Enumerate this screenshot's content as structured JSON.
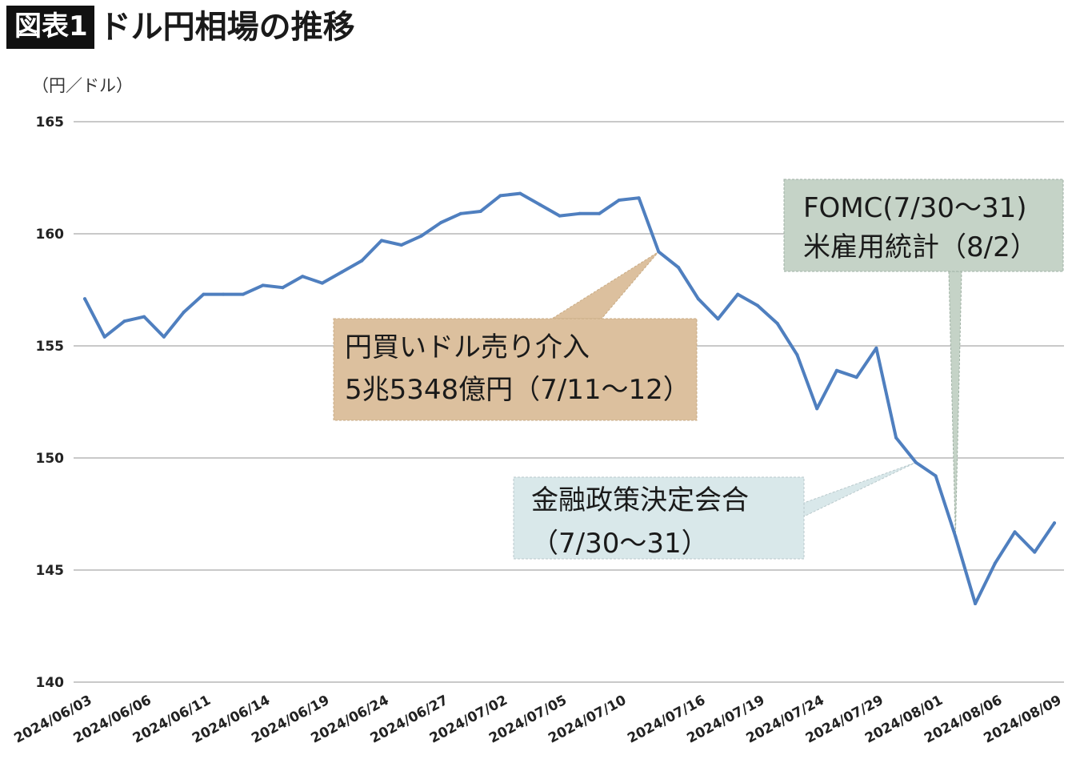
{
  "header": {
    "figure_label": "図表1",
    "title": "ドル円相場の推移"
  },
  "chart_data": {
    "type": "line",
    "unit_label": "（円／ドル）",
    "ylim": [
      140,
      165
    ],
    "yticks": [
      165,
      160,
      155,
      150,
      145,
      140
    ],
    "grid": true,
    "line_color": "#4f7fbf",
    "x_tick_labels": [
      "2024/06/03",
      "2024/06/06",
      "2024/06/11",
      "2024/06/14",
      "2024/06/19",
      "2024/06/24",
      "2024/06/27",
      "2024/07/02",
      "2024/07/05",
      "2024/07/10",
      "2024/07/16",
      "2024/07/19",
      "2024/07/24",
      "2024/07/29",
      "2024/08/01",
      "2024/08/06",
      "2024/08/09"
    ],
    "series": [
      {
        "x": [
          "2024/06/03",
          "2024/06/04",
          "2024/06/05",
          "2024/06/06",
          "2024/06/07",
          "2024/06/10",
          "2024/06/11",
          "2024/06/12",
          "2024/06/13",
          "2024/06/14",
          "2024/06/17",
          "2024/06/18",
          "2024/06/19",
          "2024/06/20",
          "2024/06/21",
          "2024/06/24",
          "2024/06/25",
          "2024/06/26",
          "2024/06/27",
          "2024/06/28",
          "2024/07/01",
          "2024/07/02",
          "2024/07/03",
          "2024/07/04",
          "2024/07/05",
          "2024/07/08",
          "2024/07/09",
          "2024/07/10",
          "2024/07/11",
          "2024/07/12",
          "2024/07/15",
          "2024/07/16",
          "2024/07/17",
          "2024/07/18",
          "2024/07/19",
          "2024/07/22",
          "2024/07/23",
          "2024/07/24",
          "2024/07/25",
          "2024/07/26",
          "2024/07/29",
          "2024/07/30",
          "2024/07/31",
          "2024/08/01",
          "2024/08/02",
          "2024/08/05",
          "2024/08/06",
          "2024/08/07",
          "2024/08/08",
          "2024/08/09"
        ],
        "values": [
          157.1,
          155.4,
          156.1,
          156.3,
          155.4,
          156.5,
          157.3,
          157.3,
          157.3,
          157.7,
          157.6,
          158.1,
          157.8,
          158.3,
          158.8,
          159.7,
          159.5,
          159.9,
          160.5,
          160.9,
          161.0,
          161.7,
          161.8,
          161.3,
          160.8,
          160.9,
          160.9,
          161.5,
          161.6,
          159.2,
          158.5,
          157.1,
          156.2,
          157.3,
          156.8,
          156.0,
          154.6,
          152.2,
          153.9,
          153.6,
          154.9,
          150.9,
          149.8,
          149.2,
          146.5,
          143.5,
          145.3,
          146.7,
          145.8,
          147.1
        ]
      }
    ],
    "annotations": [
      {
        "lines": [
          "円買いドル売り介入",
          "5兆5348億円（7/11〜12）"
        ],
        "fill": "#dcc09e",
        "target_x": "2024/07/12"
      },
      {
        "lines": [
          "金融政策決定会合",
          "（7/30〜31）"
        ],
        "fill": "#d9e8ea",
        "target_x": "2024/07/31"
      },
      {
        "lines": [
          "FOMC(7/30〜31)",
          "米雇用統計（8/2）"
        ],
        "fill": "#c5d3c7",
        "target_x": "2024/08/02"
      }
    ]
  }
}
